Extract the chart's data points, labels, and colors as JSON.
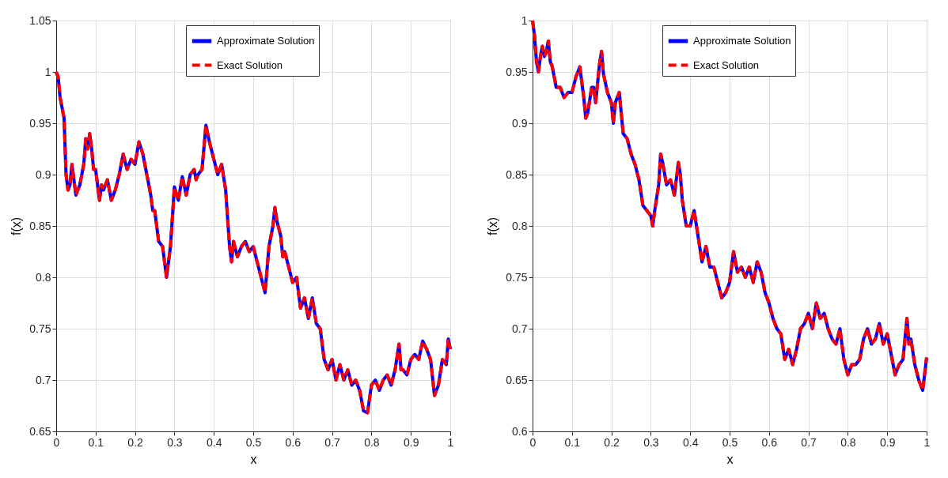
{
  "chart_data": [
    {
      "type": "line",
      "xlabel": "x",
      "ylabel": "f(x)",
      "grid": true,
      "legend": "top",
      "xlim": [
        0,
        1
      ],
      "ylim": [
        0.65,
        1.05
      ],
      "xticks": [
        0,
        0.1,
        0.2,
        0.3,
        0.4,
        0.5,
        0.6,
        0.7,
        0.8,
        0.9,
        1
      ],
      "yticks": [
        0.65,
        0.7,
        0.75,
        0.8,
        0.85,
        0.9,
        0.95,
        1,
        1.05
      ],
      "x": [
        0,
        0.005,
        0.01,
        0.015,
        0.02,
        0.025,
        0.03,
        0.035,
        0.04,
        0.045,
        0.05,
        0.06,
        0.07,
        0.075,
        0.08,
        0.085,
        0.09,
        0.095,
        0.1,
        0.11,
        0.115,
        0.12,
        0.13,
        0.14,
        0.15,
        0.16,
        0.17,
        0.18,
        0.19,
        0.2,
        0.21,
        0.22,
        0.23,
        0.24,
        0.245,
        0.25,
        0.26,
        0.27,
        0.28,
        0.29,
        0.3,
        0.31,
        0.32,
        0.33,
        0.34,
        0.35,
        0.355,
        0.36,
        0.37,
        0.38,
        0.39,
        0.4,
        0.41,
        0.42,
        0.43,
        0.44,
        0.445,
        0.45,
        0.46,
        0.47,
        0.48,
        0.49,
        0.5,
        0.51,
        0.52,
        0.53,
        0.54,
        0.55,
        0.555,
        0.56,
        0.57,
        0.575,
        0.58,
        0.59,
        0.6,
        0.61,
        0.62,
        0.63,
        0.64,
        0.65,
        0.66,
        0.67,
        0.68,
        0.69,
        0.7,
        0.71,
        0.72,
        0.73,
        0.74,
        0.75,
        0.76,
        0.77,
        0.78,
        0.79,
        0.8,
        0.81,
        0.82,
        0.83,
        0.84,
        0.85,
        0.86,
        0.87,
        0.875,
        0.88,
        0.89,
        0.9,
        0.91,
        0.92,
        0.93,
        0.94,
        0.95,
        0.96,
        0.97,
        0.98,
        0.99,
        0.995,
        1
      ],
      "series": [
        {
          "name": "Approximate Solution",
          "color": "#0000ff",
          "line_style": "solid",
          "values": [
            1.0,
            0.995,
            0.975,
            0.965,
            0.955,
            0.9,
            0.885,
            0.89,
            0.91,
            0.895,
            0.88,
            0.89,
            0.91,
            0.935,
            0.925,
            0.94,
            0.925,
            0.905,
            0.905,
            0.875,
            0.89,
            0.885,
            0.895,
            0.875,
            0.885,
            0.9,
            0.92,
            0.905,
            0.915,
            0.91,
            0.932,
            0.92,
            0.9,
            0.88,
            0.865,
            0.865,
            0.835,
            0.83,
            0.8,
            0.83,
            0.888,
            0.875,
            0.898,
            0.88,
            0.9,
            0.905,
            0.895,
            0.9,
            0.905,
            0.948,
            0.93,
            0.915,
            0.9,
            0.91,
            0.885,
            0.83,
            0.815,
            0.835,
            0.82,
            0.83,
            0.835,
            0.825,
            0.83,
            0.815,
            0.8,
            0.785,
            0.83,
            0.85,
            0.868,
            0.855,
            0.84,
            0.82,
            0.825,
            0.81,
            0.795,
            0.8,
            0.77,
            0.78,
            0.76,
            0.78,
            0.755,
            0.75,
            0.72,
            0.71,
            0.72,
            0.7,
            0.715,
            0.7,
            0.71,
            0.695,
            0.7,
            0.69,
            0.67,
            0.668,
            0.695,
            0.7,
            0.69,
            0.7,
            0.705,
            0.695,
            0.71,
            0.735,
            0.71,
            0.71,
            0.705,
            0.72,
            0.725,
            0.72,
            0.738,
            0.73,
            0.72,
            0.685,
            0.695,
            0.72,
            0.715,
            0.74,
            0.73
          ]
        },
        {
          "name": "Exact Solution",
          "color": "#ff0000",
          "line_style": "dashed",
          "values": [
            1.0,
            0.995,
            0.975,
            0.965,
            0.955,
            0.9,
            0.885,
            0.89,
            0.91,
            0.895,
            0.88,
            0.89,
            0.91,
            0.935,
            0.925,
            0.94,
            0.925,
            0.905,
            0.905,
            0.875,
            0.89,
            0.885,
            0.895,
            0.875,
            0.885,
            0.9,
            0.92,
            0.905,
            0.915,
            0.91,
            0.932,
            0.92,
            0.9,
            0.88,
            0.865,
            0.865,
            0.835,
            0.83,
            0.8,
            0.83,
            0.888,
            0.875,
            0.898,
            0.88,
            0.9,
            0.905,
            0.895,
            0.9,
            0.905,
            0.948,
            0.93,
            0.915,
            0.9,
            0.91,
            0.885,
            0.83,
            0.815,
            0.835,
            0.82,
            0.83,
            0.835,
            0.825,
            0.83,
            0.815,
            0.8,
            0.785,
            0.83,
            0.85,
            0.868,
            0.855,
            0.84,
            0.82,
            0.825,
            0.81,
            0.795,
            0.8,
            0.77,
            0.78,
            0.76,
            0.78,
            0.755,
            0.75,
            0.72,
            0.71,
            0.72,
            0.7,
            0.715,
            0.7,
            0.71,
            0.695,
            0.7,
            0.69,
            0.67,
            0.668,
            0.695,
            0.7,
            0.69,
            0.7,
            0.705,
            0.695,
            0.71,
            0.735,
            0.71,
            0.71,
            0.705,
            0.72,
            0.725,
            0.72,
            0.738,
            0.73,
            0.72,
            0.685,
            0.695,
            0.72,
            0.715,
            0.74,
            0.73
          ]
        }
      ]
    },
    {
      "type": "line",
      "xlabel": "x",
      "ylabel": "f(x)",
      "grid": true,
      "legend": "top",
      "xlim": [
        0,
        1
      ],
      "ylim": [
        0.6,
        1
      ],
      "xticks": [
        0,
        0.1,
        0.2,
        0.3,
        0.4,
        0.5,
        0.6,
        0.7,
        0.8,
        0.9,
        1
      ],
      "yticks": [
        0.6,
        0.65,
        0.7,
        0.75,
        0.8,
        0.85,
        0.9,
        0.95,
        1
      ],
      "x": [
        0,
        0.005,
        0.01,
        0.015,
        0.02,
        0.025,
        0.03,
        0.035,
        0.04,
        0.045,
        0.05,
        0.06,
        0.07,
        0.08,
        0.09,
        0.1,
        0.11,
        0.115,
        0.12,
        0.13,
        0.135,
        0.14,
        0.15,
        0.155,
        0.16,
        0.17,
        0.175,
        0.18,
        0.19,
        0.2,
        0.205,
        0.21,
        0.22,
        0.23,
        0.24,
        0.25,
        0.26,
        0.27,
        0.28,
        0.29,
        0.3,
        0.305,
        0.31,
        0.32,
        0.325,
        0.33,
        0.34,
        0.35,
        0.36,
        0.37,
        0.375,
        0.38,
        0.39,
        0.4,
        0.41,
        0.42,
        0.43,
        0.44,
        0.45,
        0.46,
        0.47,
        0.48,
        0.49,
        0.5,
        0.51,
        0.52,
        0.53,
        0.54,
        0.55,
        0.56,
        0.57,
        0.58,
        0.59,
        0.6,
        0.61,
        0.62,
        0.63,
        0.64,
        0.65,
        0.66,
        0.67,
        0.68,
        0.69,
        0.7,
        0.71,
        0.72,
        0.73,
        0.74,
        0.75,
        0.76,
        0.77,
        0.78,
        0.79,
        0.8,
        0.81,
        0.82,
        0.83,
        0.84,
        0.85,
        0.86,
        0.87,
        0.88,
        0.89,
        0.9,
        0.91,
        0.92,
        0.93,
        0.94,
        0.95,
        0.955,
        0.96,
        0.97,
        0.98,
        0.99,
        1
      ],
      "series": [
        {
          "name": "Approximate Solution",
          "color": "#0000ff",
          "line_style": "solid",
          "values": [
            1.0,
            0.985,
            0.96,
            0.95,
            0.965,
            0.975,
            0.965,
            0.97,
            0.98,
            0.96,
            0.955,
            0.935,
            0.935,
            0.925,
            0.93,
            0.93,
            0.945,
            0.95,
            0.955,
            0.925,
            0.905,
            0.91,
            0.935,
            0.935,
            0.92,
            0.958,
            0.97,
            0.948,
            0.93,
            0.92,
            0.9,
            0.92,
            0.93,
            0.89,
            0.885,
            0.87,
            0.86,
            0.845,
            0.82,
            0.815,
            0.81,
            0.8,
            0.815,
            0.84,
            0.87,
            0.862,
            0.84,
            0.845,
            0.83,
            0.862,
            0.85,
            0.825,
            0.8,
            0.8,
            0.815,
            0.79,
            0.765,
            0.78,
            0.76,
            0.76,
            0.745,
            0.73,
            0.735,
            0.745,
            0.775,
            0.755,
            0.76,
            0.75,
            0.76,
            0.745,
            0.765,
            0.755,
            0.735,
            0.725,
            0.71,
            0.7,
            0.695,
            0.67,
            0.68,
            0.665,
            0.68,
            0.7,
            0.705,
            0.715,
            0.7,
            0.725,
            0.71,
            0.715,
            0.7,
            0.69,
            0.685,
            0.7,
            0.67,
            0.655,
            0.665,
            0.665,
            0.67,
            0.69,
            0.7,
            0.685,
            0.69,
            0.705,
            0.685,
            0.695,
            0.675,
            0.655,
            0.665,
            0.67,
            0.71,
            0.685,
            0.69,
            0.665,
            0.65,
            0.64,
            0.672
          ]
        },
        {
          "name": "Exact Solution",
          "color": "#ff0000",
          "line_style": "dashed",
          "values": [
            1.0,
            0.985,
            0.96,
            0.95,
            0.965,
            0.975,
            0.965,
            0.97,
            0.98,
            0.96,
            0.955,
            0.935,
            0.935,
            0.925,
            0.93,
            0.93,
            0.945,
            0.95,
            0.955,
            0.925,
            0.905,
            0.91,
            0.935,
            0.935,
            0.92,
            0.958,
            0.97,
            0.948,
            0.93,
            0.92,
            0.9,
            0.92,
            0.93,
            0.89,
            0.885,
            0.87,
            0.86,
            0.845,
            0.82,
            0.815,
            0.81,
            0.8,
            0.815,
            0.84,
            0.87,
            0.862,
            0.84,
            0.845,
            0.83,
            0.862,
            0.85,
            0.825,
            0.8,
            0.8,
            0.815,
            0.79,
            0.765,
            0.78,
            0.76,
            0.76,
            0.745,
            0.73,
            0.735,
            0.745,
            0.775,
            0.755,
            0.76,
            0.75,
            0.76,
            0.745,
            0.765,
            0.755,
            0.735,
            0.725,
            0.71,
            0.7,
            0.695,
            0.67,
            0.68,
            0.665,
            0.68,
            0.7,
            0.705,
            0.715,
            0.7,
            0.725,
            0.71,
            0.715,
            0.7,
            0.69,
            0.685,
            0.7,
            0.67,
            0.655,
            0.665,
            0.665,
            0.67,
            0.69,
            0.7,
            0.685,
            0.69,
            0.705,
            0.685,
            0.695,
            0.675,
            0.655,
            0.665,
            0.67,
            0.71,
            0.685,
            0.69,
            0.665,
            0.65,
            0.64,
            0.672
          ]
        }
      ]
    }
  ]
}
